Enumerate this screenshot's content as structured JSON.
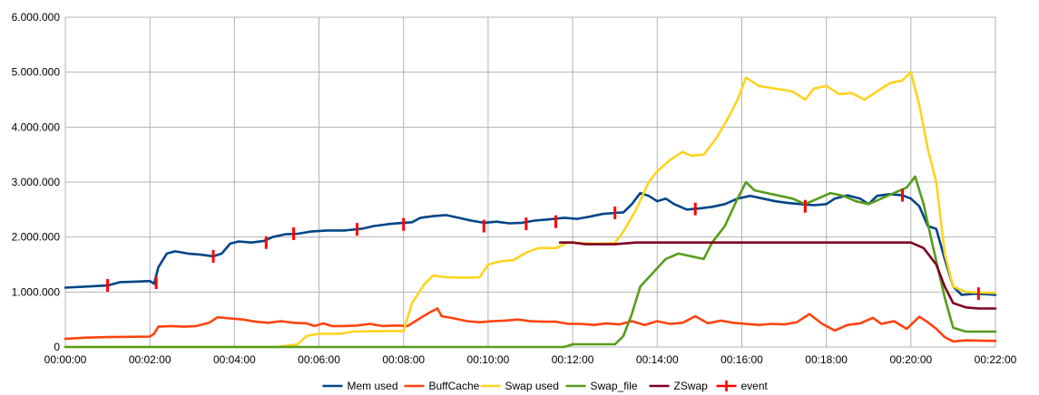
{
  "chart_data": {
    "type": "line",
    "title": "",
    "xlabel": "",
    "ylabel": "",
    "xlim": [
      0,
      22
    ],
    "ylim": [
      0,
      6000000
    ],
    "x_ticks": [
      {
        "v": 0,
        "label": "00:00:00"
      },
      {
        "v": 2,
        "label": "00:02:00"
      },
      {
        "v": 4,
        "label": "00:04:00"
      },
      {
        "v": 6,
        "label": "00:06:00"
      },
      {
        "v": 8,
        "label": "00:08:00"
      },
      {
        "v": 10,
        "label": "00:10:00"
      },
      {
        "v": 12,
        "label": "00:12:00"
      },
      {
        "v": 14,
        "label": "00:14:00"
      },
      {
        "v": 16,
        "label": "00:16:00"
      },
      {
        "v": 18,
        "label": "00:18:00"
      },
      {
        "v": 20,
        "label": "00:20:00"
      },
      {
        "v": 22,
        "label": "00:22:00"
      }
    ],
    "y_ticks": [
      {
        "v": 0,
        "label": "0"
      },
      {
        "v": 1000000,
        "label": "1.000.000"
      },
      {
        "v": 2000000,
        "label": "2.000.000"
      },
      {
        "v": 3000000,
        "label": "3.000.000"
      },
      {
        "v": 4000000,
        "label": "4.000.000"
      },
      {
        "v": 5000000,
        "label": "5.000.000"
      },
      {
        "v": 6000000,
        "label": "6.000.000"
      }
    ],
    "grid": true,
    "legend_position": "bottom",
    "series": [
      {
        "name": "Mem used",
        "color": "#004586",
        "points": [
          [
            0,
            1080000
          ],
          [
            0.5,
            1100000
          ],
          [
            1,
            1120000
          ],
          [
            1.3,
            1180000
          ],
          [
            1.7,
            1190000
          ],
          [
            2.0,
            1200000
          ],
          [
            2.1,
            1150000
          ],
          [
            2.2,
            1450000
          ],
          [
            2.4,
            1700000
          ],
          [
            2.6,
            1740000
          ],
          [
            2.9,
            1700000
          ],
          [
            3.2,
            1680000
          ],
          [
            3.5,
            1650000
          ],
          [
            3.7,
            1700000
          ],
          [
            3.9,
            1880000
          ],
          [
            4.1,
            1920000
          ],
          [
            4.4,
            1900000
          ],
          [
            4.7,
            1930000
          ],
          [
            4.9,
            2000000
          ],
          [
            5.2,
            2050000
          ],
          [
            5.5,
            2060000
          ],
          [
            5.8,
            2100000
          ],
          [
            6.2,
            2120000
          ],
          [
            6.6,
            2120000
          ],
          [
            7.0,
            2150000
          ],
          [
            7.3,
            2200000
          ],
          [
            7.7,
            2240000
          ],
          [
            8.0,
            2260000
          ],
          [
            8.2,
            2270000
          ],
          [
            8.4,
            2350000
          ],
          [
            8.7,
            2380000
          ],
          [
            9.0,
            2400000
          ],
          [
            9.3,
            2350000
          ],
          [
            9.6,
            2300000
          ],
          [
            9.9,
            2260000
          ],
          [
            10.2,
            2280000
          ],
          [
            10.5,
            2250000
          ],
          [
            10.8,
            2260000
          ],
          [
            11.1,
            2300000
          ],
          [
            11.4,
            2320000
          ],
          [
            11.8,
            2350000
          ],
          [
            12.1,
            2330000
          ],
          [
            12.4,
            2370000
          ],
          [
            12.7,
            2420000
          ],
          [
            13.0,
            2440000
          ],
          [
            13.2,
            2450000
          ],
          [
            13.4,
            2600000
          ],
          [
            13.6,
            2800000
          ],
          [
            13.8,
            2750000
          ],
          [
            14.0,
            2650000
          ],
          [
            14.2,
            2700000
          ],
          [
            14.4,
            2600000
          ],
          [
            14.7,
            2500000
          ],
          [
            15.0,
            2520000
          ],
          [
            15.3,
            2550000
          ],
          [
            15.6,
            2600000
          ],
          [
            15.9,
            2700000
          ],
          [
            16.2,
            2750000
          ],
          [
            16.5,
            2700000
          ],
          [
            16.8,
            2650000
          ],
          [
            17.1,
            2620000
          ],
          [
            17.4,
            2600000
          ],
          [
            17.7,
            2580000
          ],
          [
            18.0,
            2600000
          ],
          [
            18.2,
            2700000
          ],
          [
            18.5,
            2760000
          ],
          [
            18.8,
            2700000
          ],
          [
            19.0,
            2600000
          ],
          [
            19.2,
            2750000
          ],
          [
            19.5,
            2780000
          ],
          [
            19.8,
            2760000
          ],
          [
            20.0,
            2700000
          ],
          [
            20.2,
            2560000
          ],
          [
            20.4,
            2200000
          ],
          [
            20.6,
            2150000
          ],
          [
            20.8,
            1600000
          ],
          [
            21.0,
            1100000
          ],
          [
            21.2,
            950000
          ],
          [
            21.5,
            970000
          ],
          [
            21.8,
            960000
          ],
          [
            22.0,
            950000
          ]
        ]
      },
      {
        "name": "BuffCache",
        "color": "#ff420e",
        "points": [
          [
            0,
            150000
          ],
          [
            0.5,
            170000
          ],
          [
            1,
            180000
          ],
          [
            1.5,
            185000
          ],
          [
            2.0,
            190000
          ],
          [
            2.1,
            240000
          ],
          [
            2.2,
            370000
          ],
          [
            2.5,
            380000
          ],
          [
            2.8,
            370000
          ],
          [
            3.1,
            380000
          ],
          [
            3.4,
            440000
          ],
          [
            3.6,
            540000
          ],
          [
            3.9,
            520000
          ],
          [
            4.2,
            500000
          ],
          [
            4.5,
            460000
          ],
          [
            4.8,
            440000
          ],
          [
            5.1,
            470000
          ],
          [
            5.4,
            440000
          ],
          [
            5.7,
            430000
          ],
          [
            5.9,
            380000
          ],
          [
            6.1,
            430000
          ],
          [
            6.3,
            380000
          ],
          [
            6.6,
            380000
          ],
          [
            6.9,
            390000
          ],
          [
            7.2,
            420000
          ],
          [
            7.5,
            380000
          ],
          [
            7.8,
            390000
          ],
          [
            8.1,
            380000
          ],
          [
            8.3,
            480000
          ],
          [
            8.6,
            620000
          ],
          [
            8.8,
            700000
          ],
          [
            8.9,
            560000
          ],
          [
            9.2,
            520000
          ],
          [
            9.5,
            470000
          ],
          [
            9.8,
            450000
          ],
          [
            10.1,
            470000
          ],
          [
            10.4,
            480000
          ],
          [
            10.7,
            500000
          ],
          [
            11.0,
            470000
          ],
          [
            11.3,
            460000
          ],
          [
            11.6,
            460000
          ],
          [
            11.9,
            420000
          ],
          [
            12.2,
            420000
          ],
          [
            12.5,
            400000
          ],
          [
            12.8,
            430000
          ],
          [
            13.1,
            410000
          ],
          [
            13.4,
            470000
          ],
          [
            13.7,
            400000
          ],
          [
            14.0,
            470000
          ],
          [
            14.3,
            420000
          ],
          [
            14.6,
            440000
          ],
          [
            14.9,
            560000
          ],
          [
            15.2,
            430000
          ],
          [
            15.5,
            480000
          ],
          [
            15.8,
            440000
          ],
          [
            16.1,
            420000
          ],
          [
            16.4,
            400000
          ],
          [
            16.7,
            420000
          ],
          [
            17.0,
            410000
          ],
          [
            17.3,
            450000
          ],
          [
            17.6,
            600000
          ],
          [
            17.9,
            420000
          ],
          [
            18.2,
            300000
          ],
          [
            18.5,
            400000
          ],
          [
            18.8,
            430000
          ],
          [
            19.1,
            530000
          ],
          [
            19.3,
            420000
          ],
          [
            19.6,
            470000
          ],
          [
            19.9,
            330000
          ],
          [
            20.2,
            550000
          ],
          [
            20.4,
            450000
          ],
          [
            20.6,
            330000
          ],
          [
            20.8,
            180000
          ],
          [
            21.0,
            100000
          ],
          [
            21.3,
            120000
          ],
          [
            22.0,
            110000
          ]
        ]
      },
      {
        "name": "Swap used",
        "color": "#ffd320",
        "points": [
          [
            0,
            0
          ],
          [
            5.0,
            0
          ],
          [
            5.5,
            50000
          ],
          [
            5.7,
            200000
          ],
          [
            6.0,
            240000
          ],
          [
            6.5,
            240000
          ],
          [
            6.8,
            280000
          ],
          [
            7.5,
            290000
          ],
          [
            8.0,
            290000
          ],
          [
            8.2,
            800000
          ],
          [
            8.5,
            1150000
          ],
          [
            8.7,
            1300000
          ],
          [
            9.0,
            1270000
          ],
          [
            9.5,
            1260000
          ],
          [
            9.8,
            1270000
          ],
          [
            10.0,
            1500000
          ],
          [
            10.3,
            1560000
          ],
          [
            10.6,
            1580000
          ],
          [
            10.9,
            1720000
          ],
          [
            11.2,
            1800000
          ],
          [
            11.6,
            1800000
          ],
          [
            11.9,
            1900000
          ],
          [
            12.2,
            1890000
          ],
          [
            12.6,
            1880000
          ],
          [
            13.0,
            1890000
          ],
          [
            13.2,
            2100000
          ],
          [
            13.5,
            2500000
          ],
          [
            13.8,
            3000000
          ],
          [
            14.0,
            3200000
          ],
          [
            14.3,
            3400000
          ],
          [
            14.6,
            3550000
          ],
          [
            14.8,
            3480000
          ],
          [
            15.1,
            3500000
          ],
          [
            15.4,
            3800000
          ],
          [
            15.7,
            4200000
          ],
          [
            15.9,
            4500000
          ],
          [
            16.1,
            4900000
          ],
          [
            16.4,
            4750000
          ],
          [
            16.8,
            4700000
          ],
          [
            17.2,
            4650000
          ],
          [
            17.5,
            4500000
          ],
          [
            17.7,
            4700000
          ],
          [
            18.0,
            4750000
          ],
          [
            18.3,
            4600000
          ],
          [
            18.6,
            4620000
          ],
          [
            18.9,
            4500000
          ],
          [
            19.2,
            4650000
          ],
          [
            19.5,
            4800000
          ],
          [
            19.8,
            4850000
          ],
          [
            20.0,
            5000000
          ],
          [
            20.2,
            4400000
          ],
          [
            20.4,
            3600000
          ],
          [
            20.6,
            3000000
          ],
          [
            20.8,
            1700000
          ],
          [
            21.0,
            1100000
          ],
          [
            21.3,
            1000000
          ],
          [
            22.0,
            980000
          ]
        ]
      },
      {
        "name": "Swap_file",
        "color": "#579d1c",
        "points": [
          [
            0,
            0
          ],
          [
            11.8,
            0
          ],
          [
            12.0,
            50000
          ],
          [
            12.5,
            50000
          ],
          [
            13.0,
            50000
          ],
          [
            13.2,
            200000
          ],
          [
            13.4,
            600000
          ],
          [
            13.6,
            1100000
          ],
          [
            13.9,
            1350000
          ],
          [
            14.2,
            1600000
          ],
          [
            14.5,
            1700000
          ],
          [
            14.8,
            1650000
          ],
          [
            15.1,
            1600000
          ],
          [
            15.3,
            1900000
          ],
          [
            15.6,
            2200000
          ],
          [
            15.9,
            2700000
          ],
          [
            16.1,
            3000000
          ],
          [
            16.3,
            2850000
          ],
          [
            16.6,
            2800000
          ],
          [
            16.9,
            2750000
          ],
          [
            17.2,
            2700000
          ],
          [
            17.5,
            2600000
          ],
          [
            17.8,
            2700000
          ],
          [
            18.1,
            2800000
          ],
          [
            18.4,
            2750000
          ],
          [
            18.7,
            2650000
          ],
          [
            19.0,
            2600000
          ],
          [
            19.3,
            2700000
          ],
          [
            19.6,
            2800000
          ],
          [
            19.9,
            2900000
          ],
          [
            20.1,
            3100000
          ],
          [
            20.3,
            2600000
          ],
          [
            20.5,
            1900000
          ],
          [
            20.8,
            900000
          ],
          [
            21.0,
            350000
          ],
          [
            21.3,
            280000
          ],
          [
            22.0,
            280000
          ]
        ]
      },
      {
        "name": "ZSwap",
        "color": "#7e0021",
        "points": [
          [
            11.7,
            1900000
          ],
          [
            12.0,
            1900000
          ],
          [
            12.3,
            1870000
          ],
          [
            13.0,
            1870000
          ],
          [
            13.5,
            1900000
          ],
          [
            20.0,
            1900000
          ],
          [
            20.3,
            1800000
          ],
          [
            20.6,
            1500000
          ],
          [
            20.8,
            1100000
          ],
          [
            21.0,
            800000
          ],
          [
            21.3,
            720000
          ],
          [
            21.6,
            700000
          ],
          [
            22.0,
            700000
          ]
        ]
      }
    ],
    "events": {
      "name": "event",
      "color": "#ff0000",
      "points": [
        [
          1.0,
          1120000
        ],
        [
          2.15,
          1170000
        ],
        [
          3.5,
          1650000
        ],
        [
          4.75,
          1900000
        ],
        [
          5.4,
          2060000
        ],
        [
          6.9,
          2140000
        ],
        [
          8.0,
          2230000
        ],
        [
          9.9,
          2200000
        ],
        [
          10.9,
          2240000
        ],
        [
          11.6,
          2280000
        ],
        [
          13.0,
          2440000
        ],
        [
          14.9,
          2510000
        ],
        [
          17.5,
          2560000
        ],
        [
          19.8,
          2760000
        ],
        [
          21.6,
          970000
        ]
      ]
    }
  }
}
